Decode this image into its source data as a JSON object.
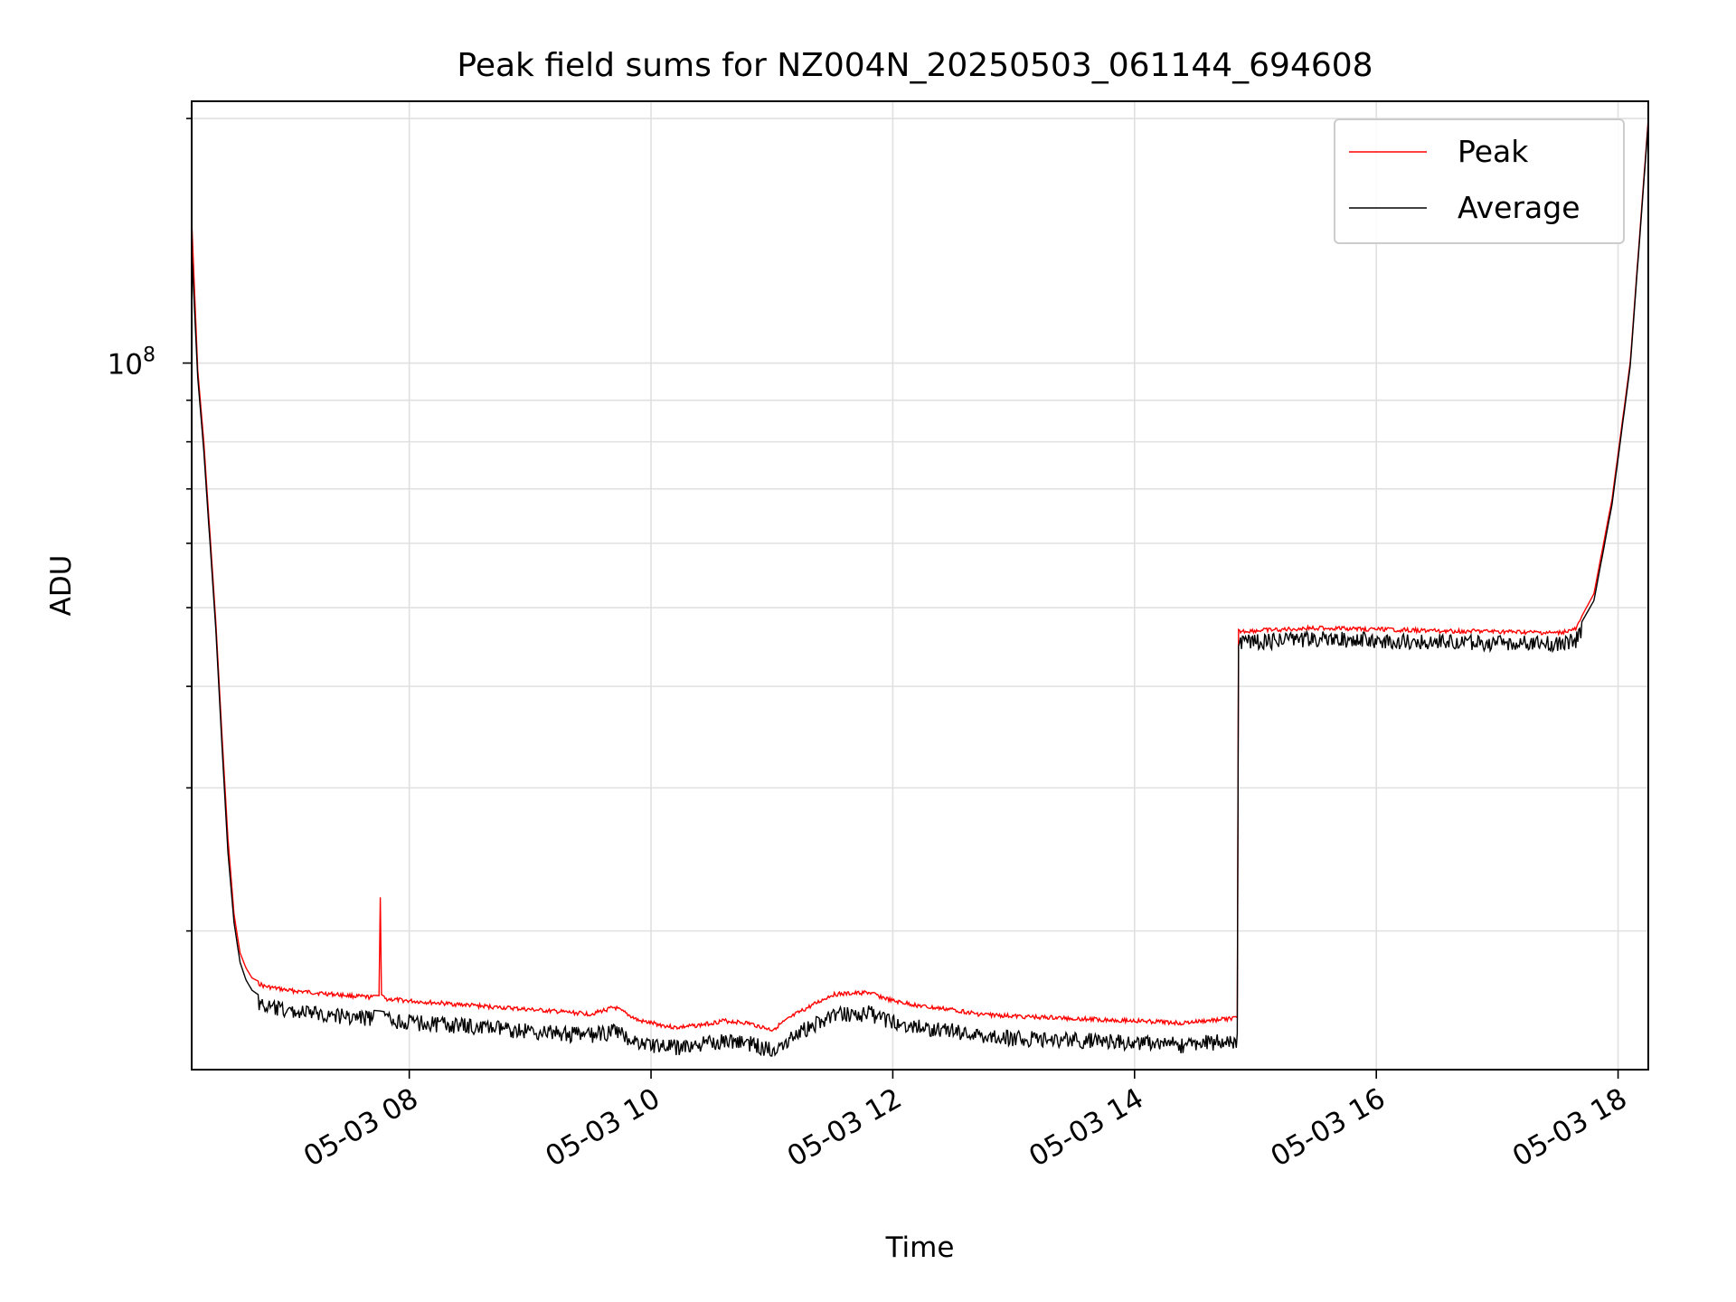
{
  "chart_data": {
    "type": "line",
    "title": "Peak field sums for NZ004N_20250503_061144_694608",
    "xlabel": "Time",
    "ylabel": "ADU",
    "y_scale": "log",
    "grid": true,
    "legend_position": "top-right",
    "x_tick_labels": [
      "05-03 08",
      "05-03 10",
      "05-03 12",
      "05-03 14",
      "05-03 16",
      "05-03 18"
    ],
    "x_ticks_hours": [
      8,
      10,
      12,
      14,
      16,
      18
    ],
    "xlim_hours": [
      6.2,
      18.25
    ],
    "y_tick_labels": [
      {
        "base": "10",
        "exp": "8",
        "value": 100000000
      }
    ],
    "ylim": [
      13500000,
      210000000
    ],
    "colors": {
      "Peak": "#ff0000",
      "Average": "#000000"
    },
    "series": [
      {
        "name": "Peak",
        "x_hours": [
          6.2,
          6.25,
          6.3,
          6.4,
          6.45,
          6.5,
          6.55,
          6.6,
          6.65,
          6.7,
          6.8,
          7.0,
          7.2,
          7.4,
          7.6,
          7.75,
          7.76,
          7.77,
          7.8,
          8.0,
          8.5,
          9.0,
          9.5,
          9.7,
          9.9,
          10.2,
          10.4,
          10.6,
          10.8,
          11.0,
          11.2,
          11.5,
          11.8,
          12.0,
          12.3,
          12.5,
          12.7,
          13.0,
          13.5,
          14.0,
          14.4,
          14.8,
          14.85,
          14.86,
          15.5,
          16.0,
          16.5,
          17.0,
          17.5,
          17.65,
          17.8,
          17.95,
          18.1,
          18.25
        ],
        "y": [
          150000000,
          98000000,
          80000000,
          48000000,
          35000000,
          26000000,
          21000000,
          18800000,
          18000000,
          17500000,
          17200000,
          17000000,
          16900000,
          16800000,
          16700000,
          16650000,
          22000000,
          16700000,
          16600000,
          16500000,
          16300000,
          16100000,
          15900000,
          16200000,
          15600000,
          15300000,
          15400000,
          15600000,
          15500000,
          15200000,
          15900000,
          16800000,
          16900000,
          16500000,
          16200000,
          16100000,
          15900000,
          15800000,
          15700000,
          15600000,
          15500000,
          15700000,
          15700000,
          47000000,
          47500000,
          47300000,
          47100000,
          47000000,
          46800000,
          47300000,
          52000000,
          68000000,
          100000000,
          200000000
        ]
      },
      {
        "name": "Average",
        "x_hours": [
          6.2,
          6.25,
          6.3,
          6.4,
          6.45,
          6.5,
          6.55,
          6.6,
          6.65,
          6.7,
          6.8,
          7.0,
          7.2,
          7.4,
          7.6,
          7.75,
          7.8,
          8.0,
          8.5,
          9.0,
          9.5,
          9.7,
          9.9,
          10.2,
          10.4,
          10.6,
          10.8,
          11.0,
          11.2,
          11.5,
          11.8,
          12.0,
          12.3,
          12.5,
          12.7,
          13.0,
          13.5,
          14.0,
          14.4,
          14.8,
          14.85,
          14.86,
          15.5,
          16.0,
          16.5,
          17.0,
          17.5,
          17.65,
          17.8,
          17.95,
          18.1,
          18.25
        ],
        "y": [
          138000000,
          96000000,
          78000000,
          47000000,
          34000000,
          25000000,
          20500000,
          18300000,
          17400000,
          16900000,
          16500000,
          16300000,
          16200000,
          16100000,
          16000000,
          15950000,
          15900000,
          15800000,
          15600000,
          15400000,
          15200000,
          15400000,
          14900000,
          14700000,
          14800000,
          15000000,
          14900000,
          14600000,
          15300000,
          16100000,
          16200000,
          15800000,
          15500000,
          15400000,
          15200000,
          15100000,
          15000000,
          14900000,
          14800000,
          15000000,
          15000000,
          46300000,
          46800000,
          46600000,
          46400000,
          46300000,
          46100000,
          46600000,
          51000000,
          67000000,
          99000000,
          198000000
        ]
      }
    ]
  }
}
